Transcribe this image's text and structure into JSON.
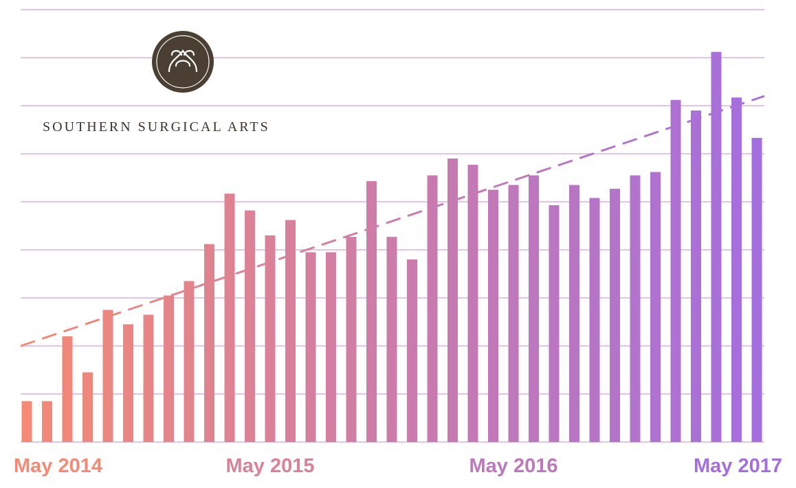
{
  "brand": {
    "name": "SOUTHERN SURGICAL ARTS",
    "monogram": "SA",
    "logo_color": "#4a3f32"
  },
  "colors": {
    "start": "#f58a74",
    "end": "#a46ee0",
    "grid": "#e2c4e6"
  },
  "chart_data": {
    "type": "bar",
    "title": "",
    "xlabel": "",
    "ylabel": "",
    "ylim": [
      0,
      9
    ],
    "grid": true,
    "trendline": {
      "style": "dashed",
      "start": 2.0,
      "end": 7.2
    },
    "x_tick_labels": [
      {
        "label": "May 2014",
        "index": 0
      },
      {
        "label": "May 2015",
        "index": 12
      },
      {
        "label": "May 2016",
        "index": 24
      },
      {
        "label": "May 2017",
        "index": 36
      }
    ],
    "values": [
      0.85,
      0.85,
      2.2,
      1.45,
      2.75,
      2.45,
      2.65,
      3.05,
      3.35,
      4.12,
      5.17,
      4.82,
      4.3,
      4.62,
      3.95,
      3.95,
      4.27,
      5.43,
      4.27,
      3.8,
      5.55,
      5.9,
      5.77,
      5.25,
      5.35,
      5.55,
      4.93,
      5.35,
      5.08,
      5.27,
      5.55,
      5.62,
      7.12,
      6.9,
      8.12,
      7.17,
      6.33
    ]
  }
}
